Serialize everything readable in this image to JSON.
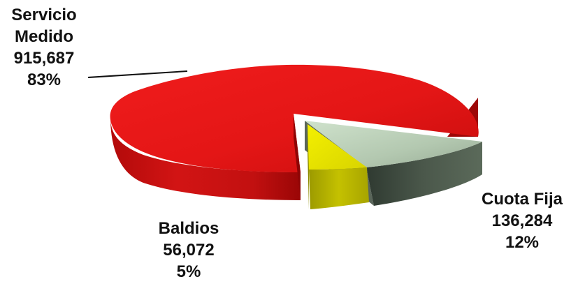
{
  "chart_data": {
    "type": "pie",
    "style": "3d-exploded",
    "categories": [
      "Servicio Medido",
      "Cuota Fija",
      "Baldios"
    ],
    "values": [
      915687,
      136284,
      56072
    ],
    "value_labels": [
      "915,687",
      "136,284",
      "56,072"
    ],
    "percent_labels": [
      "83%",
      "12%",
      "5%"
    ],
    "colors": [
      "#e21a1a",
      "#7f8f7f",
      "#d6d400"
    ],
    "title": "",
    "legend": "none"
  },
  "labels": {
    "servicio": {
      "line1": "Servicio",
      "line2": "Medido",
      "value": "915,687",
      "percent": "83%"
    },
    "cuota": {
      "name": "Cuota Fija",
      "value": "136,284",
      "percent": "12%"
    },
    "baldios": {
      "name": "Baldios",
      "value": "56,072",
      "percent": "5%"
    }
  }
}
